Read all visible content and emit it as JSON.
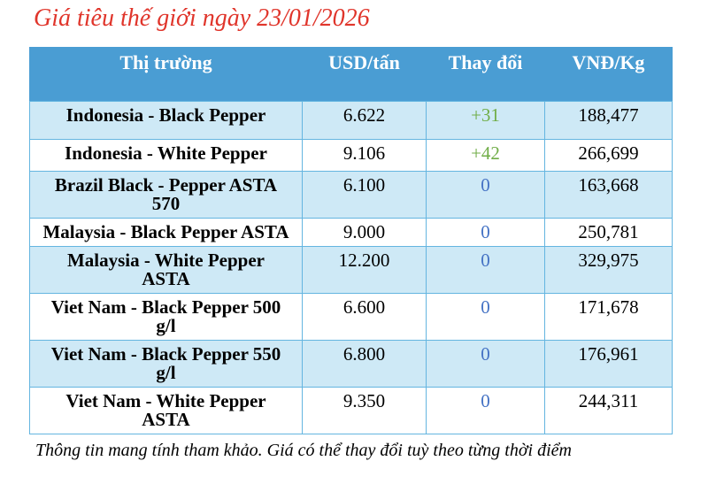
{
  "title": "Giá tiêu thế giới ngày 23/01/2026",
  "footer_note": "Thông tin mang tính tham khảo. Giá có thể thay đổi tuỳ theo từng thời điểm",
  "colors": {
    "title_red": "#E0352B",
    "header_bg": "#4A9DD3",
    "header_text": "#FFFFFF",
    "row_alt_bg": "#CEE9F6",
    "border": "#64B5E0",
    "change_up": "#70AD47",
    "change_zero": "#4472C4",
    "cell_text": "#000000"
  },
  "chart_data": {
    "type": "table",
    "title": "Giá tiêu thế giới ngày 23/01/2026",
    "columns": [
      "Thị trường",
      "USD/tấn",
      "Thay đổi",
      "VNĐ/Kg"
    ],
    "rows": [
      {
        "market": "Indonesia - Black Pepper",
        "usd_per_ton": "6.622",
        "change": "+31",
        "vnd_per_kg": "188,477"
      },
      {
        "market": "Indonesia - White Pepper",
        "usd_per_ton": "9.106",
        "change": "+42",
        "vnd_per_kg": "266,699"
      },
      {
        "market": "Brazil Black - Pepper ASTA 570",
        "usd_per_ton": "6.100",
        "change": "0",
        "vnd_per_kg": "163,668"
      },
      {
        "market": "Malaysia - Black Pepper ASTA",
        "usd_per_ton": "9.000",
        "change": "0",
        "vnd_per_kg": "250,781"
      },
      {
        "market": "Malaysia - White Pepper ASTA",
        "usd_per_ton": "12.200",
        "change": "0",
        "vnd_per_kg": "329,975"
      },
      {
        "market": "Viet Nam - Black Pepper 500 g/l",
        "usd_per_ton": "6.600",
        "change": "0",
        "vnd_per_kg": "171,678"
      },
      {
        "market": "Viet Nam - Black Pepper 550 g/l",
        "usd_per_ton": "6.800",
        "change": "0",
        "vnd_per_kg": "176,961"
      },
      {
        "market": "Viet Nam - White Pepper ASTA",
        "usd_per_ton": "9.350",
        "change": "0",
        "vnd_per_kg": "244,311"
      }
    ]
  }
}
